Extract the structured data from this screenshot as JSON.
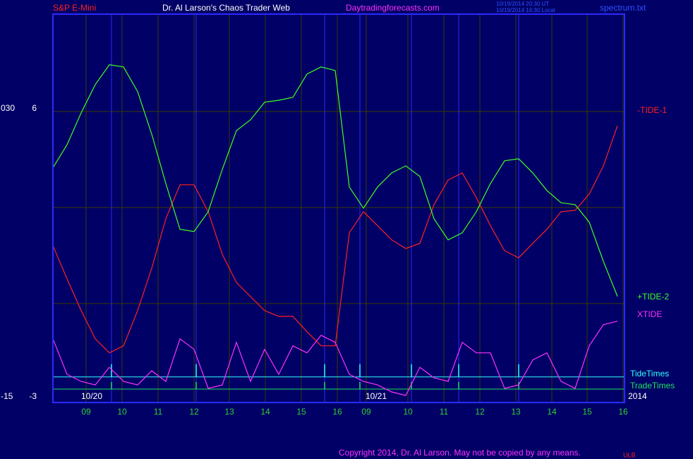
{
  "header": {
    "instrument": "S&P E-Mini",
    "site_name": "Dr. Al Larson's Chaos Trader Web",
    "url": "Daytradingforecasts.com",
    "time_ut": "10/19/2014 20:30 UT",
    "time_local": "10/19/2014 16:30 Local",
    "file": "spectrum.txt"
  },
  "footer": {
    "copyright": "Copyright 2014, Dr. Al Larson. May not be copied by any means.",
    "mark": "ULB"
  },
  "chart_data": {
    "type": "line",
    "x": [
      0,
      2,
      4,
      6,
      8,
      10,
      12,
      14,
      16,
      18,
      20,
      22,
      24,
      26,
      28,
      30,
      32,
      34,
      36,
      38,
      40,
      42,
      44,
      46,
      48,
      50,
      52,
      54,
      56,
      58,
      60,
      62,
      64,
      66,
      68,
      70,
      72,
      74,
      76,
      78,
      80
    ],
    "xlim": [
      0,
      81
    ],
    "xticks": [
      {
        "value": 4.7,
        "label": "09"
      },
      {
        "value": 9.8,
        "label": "10"
      },
      {
        "value": 14.9,
        "label": "11"
      },
      {
        "value": 20.0,
        "label": "12"
      },
      {
        "value": 25.0,
        "label": "13"
      },
      {
        "value": 30.1,
        "label": "14"
      },
      {
        "value": 35.2,
        "label": "15"
      },
      {
        "value": 40.3,
        "label": "16"
      },
      {
        "value": 44.4,
        "label": "09"
      },
      {
        "value": 50.3,
        "label": "10"
      },
      {
        "value": 55.4,
        "label": "11"
      },
      {
        "value": 60.5,
        "label": "12"
      },
      {
        "value": 65.6,
        "label": "13"
      },
      {
        "value": 70.7,
        "label": "14"
      },
      {
        "value": 75.7,
        "label": "15"
      },
      {
        "value": 80.8,
        "label": "16"
      }
    ],
    "date_labels": [
      {
        "value": 4.0,
        "label": "10/20"
      },
      {
        "value": 44.3,
        "label": "10/21"
      }
    ],
    "year": "2014",
    "ylim": [
      -3.09,
      9.04
    ],
    "yticks": [
      -3,
      6
    ],
    "ygrid": [
      0,
      3,
      6
    ],
    "y2lim": [
      -15.45,
      45.2
    ],
    "y2ticks": [
      {
        "value": -15,
        "label": "-15"
      },
      {
        "value": 30,
        "label": "030"
      }
    ],
    "series": [
      {
        "name": "-TIDE-1",
        "color": "#ff2020",
        "values": [
          1.81,
          0.77,
          -0.22,
          -1.1,
          -1.54,
          -1.32,
          -0.22,
          1.1,
          2.65,
          3.71,
          3.71,
          2.87,
          1.54,
          0.66,
          0.22,
          -0.22,
          -0.4,
          -0.4,
          -0.88,
          -1.32,
          -1.32,
          2.21,
          2.87,
          2.43,
          1.99,
          1.72,
          1.88,
          3.09,
          3.86,
          4.08,
          3.31,
          2.43,
          1.65,
          1.43,
          1.88,
          2.32,
          2.87,
          2.91,
          3.42,
          4.3,
          5.56
        ]
      },
      {
        "name": "+TIDE-2",
        "color": "#40ff20",
        "values": [
          4.24,
          4.96,
          5.96,
          6.84,
          7.46,
          7.39,
          6.62,
          5.29,
          3.75,
          2.32,
          2.25,
          2.87,
          4.19,
          5.4,
          5.74,
          6.29,
          6.35,
          6.44,
          7.17,
          7.39,
          7.28,
          3.64,
          2.98,
          3.64,
          4.08,
          4.3,
          3.97,
          2.65,
          1.99,
          2.21,
          2.87,
          3.75,
          4.46,
          4.52,
          4.08,
          3.53,
          3.15,
          3.09,
          2.54,
          1.32,
          0.22
        ]
      },
      {
        "name": "XTIDE",
        "color": "#ff30ff",
        "values": [
          -1.1,
          -2.21,
          -2.43,
          -2.54,
          -1.99,
          -2.43,
          -2.54,
          -2.1,
          -2.43,
          -1.1,
          -1.43,
          -2.65,
          -2.54,
          -1.21,
          -2.43,
          -1.43,
          -2.21,
          -1.32,
          -1.54,
          -0.99,
          -1.21,
          -2.21,
          -2.43,
          -2.54,
          -2.76,
          -2.87,
          -1.99,
          -2.32,
          -2.43,
          -1.21,
          -1.54,
          -1.54,
          -2.65,
          -2.54,
          -1.76,
          -1.54,
          -2.43,
          -2.65,
          -1.32,
          -0.66,
          -0.55
        ]
      }
    ],
    "events": [
      {
        "name": "TideTimes",
        "color": "#30ffff",
        "level": -2.29,
        "x": [
          8.3,
          20.3,
          38.5,
          43.5,
          50.8,
          57.5,
          66.0
        ]
      },
      {
        "name": "TradeTimes",
        "color": "#20e060",
        "level": -2.67,
        "x": [
          8.3,
          20.3,
          38.5,
          43.5,
          50.8,
          57.5,
          66.0
        ]
      }
    ]
  }
}
